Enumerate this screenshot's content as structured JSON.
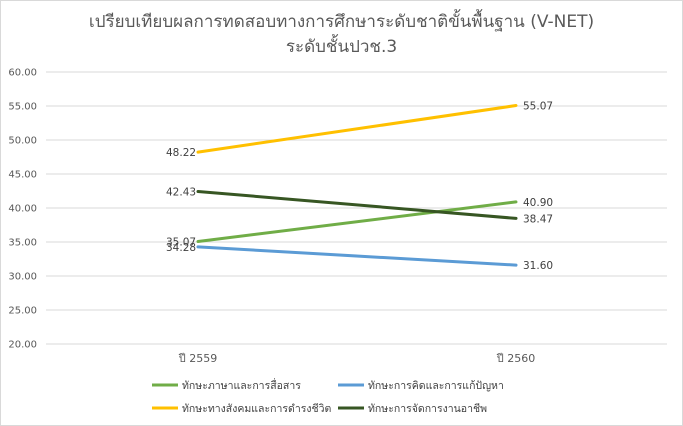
{
  "chart_data": {
    "type": "line",
    "title": "เปรียบเทียบผลการทดสอบทางการศึกษาระดับชาติขั้นพื้นฐาน (V-NET)",
    "subtitle": "ระดับชั้นปวช.3",
    "categories": [
      "ปี 2559",
      "ปี 2560"
    ],
    "ylim": [
      20,
      60
    ],
    "ytick_step": 5,
    "ytick_labels": [
      "20.00",
      "25.00",
      "30.00",
      "35.00",
      "40.00",
      "45.00",
      "50.00",
      "55.00",
      "60.00"
    ],
    "grid": true,
    "legend_position": "bottom",
    "series": [
      {
        "name": "ทักษะภาษาและการสื่อสาร",
        "values": [
          35.07,
          40.9
        ],
        "labels": [
          "35.07",
          "40.90"
        ],
        "color": "#70ad47"
      },
      {
        "name": "ทักษะการคิดและการแก้ปัญหา",
        "values": [
          34.28,
          31.6
        ],
        "labels": [
          "34.28",
          "31.60"
        ],
        "color": "#5b9bd5"
      },
      {
        "name": "ทักษะทางสังคมและการดำรงชีวิต",
        "values": [
          48.22,
          55.07
        ],
        "labels": [
          "48.22",
          "55.07"
        ],
        "color": "#ffc000"
      },
      {
        "name": "ทักษะการจัดการงานอาชีพ",
        "values": [
          42.43,
          38.47
        ],
        "labels": [
          "42.43",
          "38.47"
        ],
        "color": "#375623"
      }
    ]
  }
}
